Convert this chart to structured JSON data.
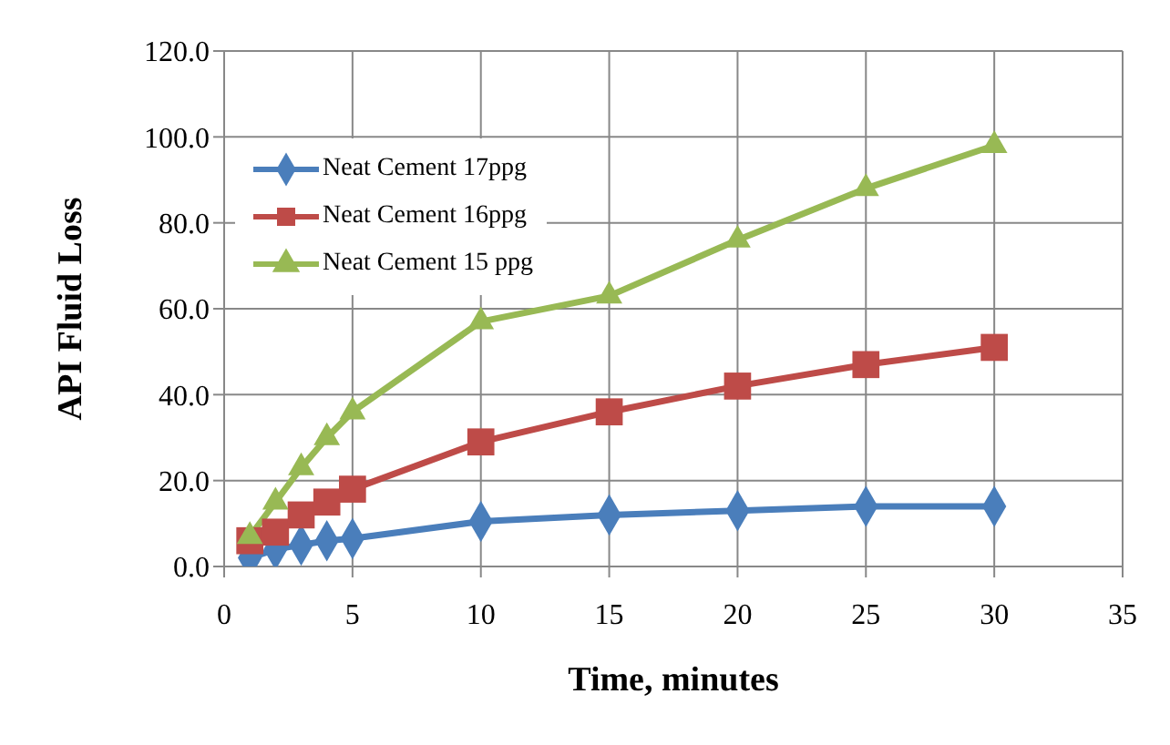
{
  "chart_data": {
    "type": "line",
    "xlabel": "Time, minutes",
    "ylabel": "API  Fluid Loss",
    "x": [
      1,
      2,
      3,
      4,
      5,
      10,
      15,
      20,
      25,
      30
    ],
    "series": [
      {
        "name": "Neat Cement 17ppg",
        "color": "#4a7ebb",
        "marker": "diamond",
        "values": [
          2,
          4,
          5,
          6,
          6.5,
          10.5,
          12,
          13,
          14,
          14
        ]
      },
      {
        "name": "Neat Cement 16ppg",
        "color": "#be4b48",
        "marker": "square",
        "values": [
          6,
          8,
          12,
          15,
          18,
          29,
          36,
          42,
          47,
          51
        ]
      },
      {
        "name": "Neat Cement 15 ppg",
        "color": "#98b954",
        "marker": "triangle",
        "values": [
          7,
          15,
          23,
          30,
          36,
          57,
          63,
          76,
          88,
          98
        ]
      }
    ],
    "xlim": [
      0,
      35
    ],
    "xticks": [
      0,
      5,
      10,
      15,
      20,
      25,
      30,
      35
    ],
    "ylim": [
      0,
      120
    ],
    "yticks": [
      {
        "value": 0,
        "label": "0.0"
      },
      {
        "value": 20,
        "label": "20.0"
      },
      {
        "value": 40,
        "label": "40.0"
      },
      {
        "value": 60,
        "label": "60.0"
      },
      {
        "value": 80,
        "label": "80.0"
      },
      {
        "value": 100,
        "label": "100.0"
      },
      {
        "value": 120,
        "label": "120.0"
      }
    ],
    "grid": true,
    "legend": "top left",
    "line_style": "solid"
  }
}
